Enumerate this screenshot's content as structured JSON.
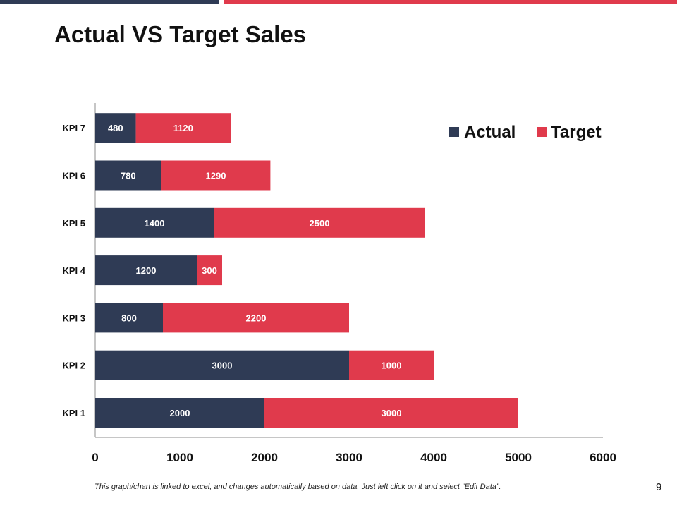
{
  "slide": {
    "title": "Actual VS Target Sales",
    "footnote": "This graph/chart is linked to excel, and changes automatically based on data. Just left click on it and select “Edit Data”.",
    "page_number": "9"
  },
  "colors": {
    "accent_dark": "#2f3b55",
    "accent_red": "#e03a4c"
  },
  "chart_data": {
    "type": "bar",
    "orientation": "horizontal",
    "stacked": true,
    "title": "",
    "xlabel": "",
    "ylabel": "",
    "categories": [
      "KPI 1",
      "KPI 2",
      "KPI 3",
      "KPI 4",
      "KPI 5",
      "KPI 6",
      "KPI 7"
    ],
    "series": [
      {
        "name": "Actual",
        "color": "#2f3b55",
        "values": [
          2000,
          3000,
          800,
          1200,
          1400,
          780,
          480
        ]
      },
      {
        "name": "Target",
        "color": "#e03a4c",
        "values": [
          3000,
          1000,
          2200,
          300,
          2500,
          1290,
          1120
        ]
      }
    ],
    "xlim": [
      0,
      6000
    ],
    "xticks": [
      0,
      1000,
      2000,
      3000,
      4000,
      5000,
      6000
    ],
    "grid": false,
    "legend_position": "top-right",
    "data_labels": true
  }
}
